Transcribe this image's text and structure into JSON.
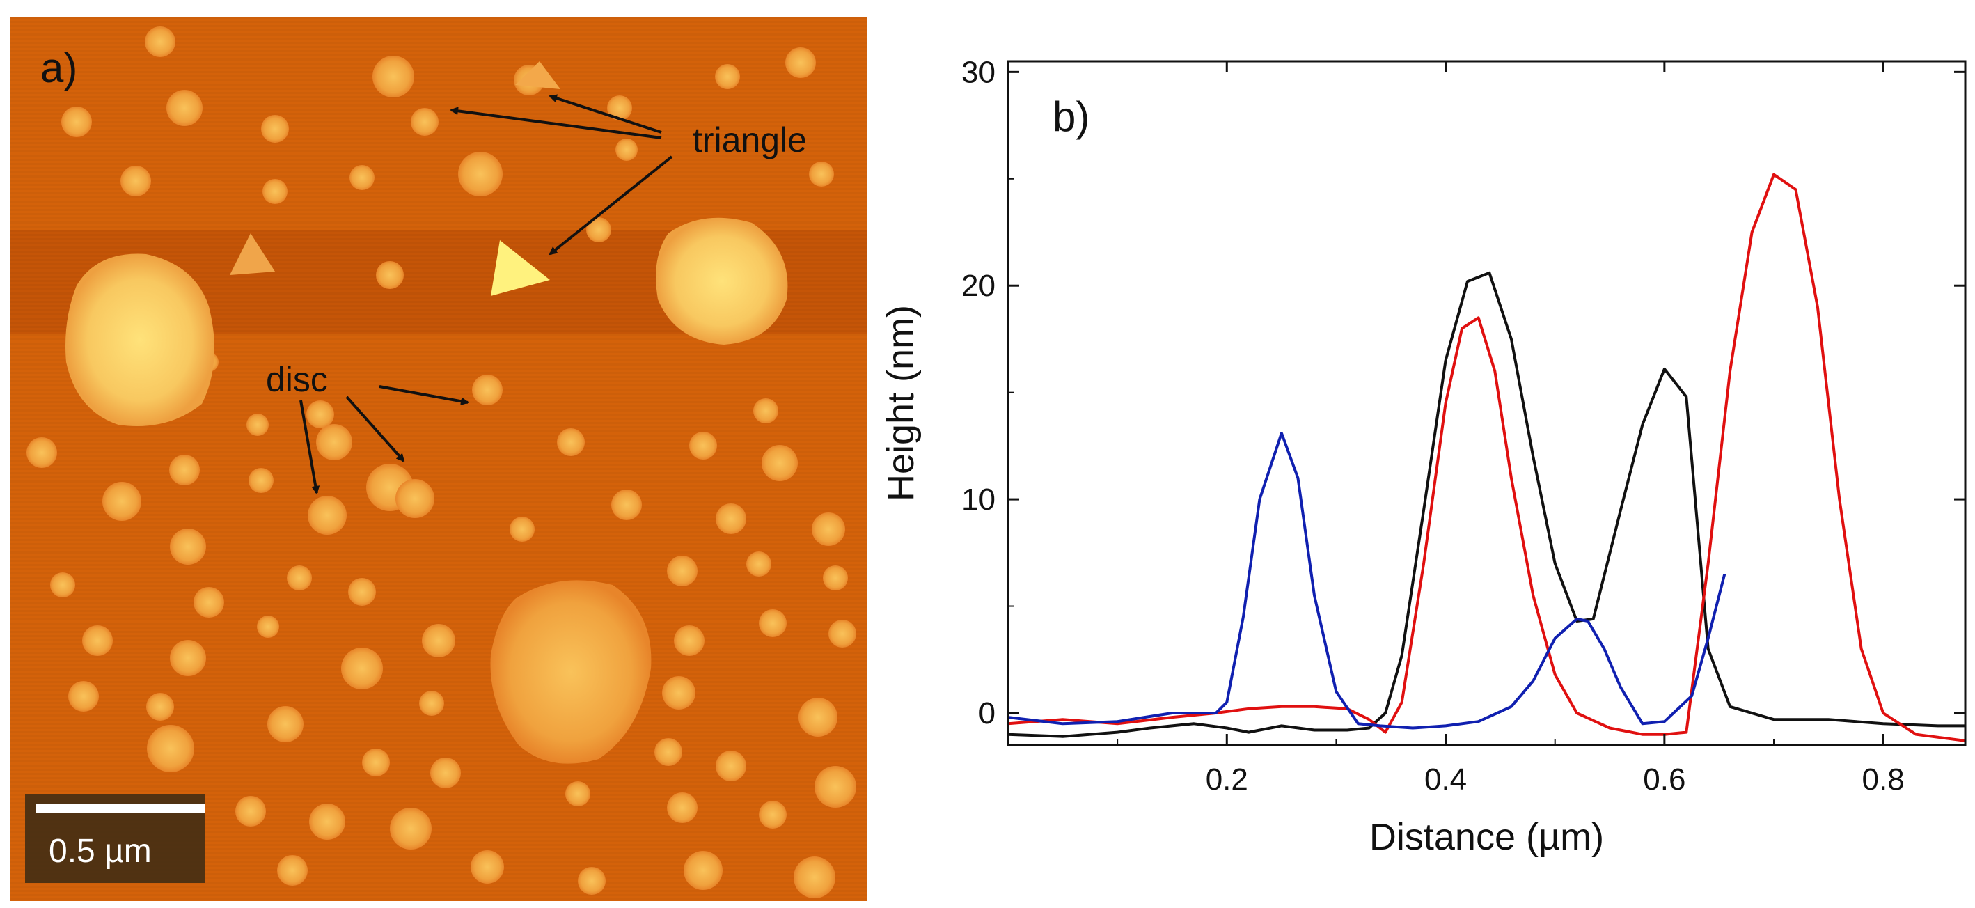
{
  "panel_a": {
    "label": "a)",
    "scale_bar_label": "0.5 µm",
    "annotations": [
      {
        "text": "triangle"
      },
      {
        "text": "disc"
      }
    ]
  },
  "panel_b": {
    "label": "b)"
  },
  "colors": {
    "afm_background": "#d4620a",
    "afm_light": "#f7b550",
    "afm_bright": "#fff07a",
    "series_black": "#111111",
    "series_red": "#e01010",
    "series_blue": "#1020b0"
  },
  "chart_data": {
    "type": "line",
    "title": "",
    "xlabel": "Distance (µm)",
    "ylabel": "Height (nm)",
    "xlim": [
      0,
      0.875
    ],
    "ylim": [
      -1.5,
      30.5
    ],
    "xticks": [
      0.2,
      0.4,
      0.6,
      0.8
    ],
    "xtick_labels": [
      "0.2",
      "0.4",
      "0.6",
      "0.8"
    ],
    "yticks": [
      0,
      10,
      20,
      30
    ],
    "ytick_labels": [
      "0",
      "10",
      "20",
      "30"
    ],
    "grid": false,
    "legend": "none",
    "series": [
      {
        "name": "black",
        "color": "#111111",
        "x": [
          0.0,
          0.05,
          0.1,
          0.13,
          0.17,
          0.2,
          0.22,
          0.25,
          0.28,
          0.31,
          0.33,
          0.345,
          0.36,
          0.38,
          0.4,
          0.42,
          0.44,
          0.46,
          0.48,
          0.5,
          0.52,
          0.535,
          0.56,
          0.58,
          0.6,
          0.62,
          0.64,
          0.66,
          0.7,
          0.75,
          0.8,
          0.85,
          0.875
        ],
        "y": [
          -1.0,
          -1.1,
          -0.9,
          -0.7,
          -0.5,
          -0.7,
          -0.9,
          -0.6,
          -0.8,
          -0.8,
          -0.7,
          0.0,
          2.7,
          9.5,
          16.5,
          20.2,
          20.6,
          17.5,
          12.0,
          7.0,
          4.3,
          4.4,
          9.5,
          13.5,
          16.1,
          14.8,
          3.0,
          0.3,
          -0.3,
          -0.3,
          -0.5,
          -0.6,
          -0.6
        ]
      },
      {
        "name": "red",
        "color": "#e01010",
        "x": [
          0.0,
          0.05,
          0.1,
          0.15,
          0.19,
          0.22,
          0.25,
          0.28,
          0.31,
          0.33,
          0.345,
          0.36,
          0.38,
          0.4,
          0.415,
          0.43,
          0.445,
          0.46,
          0.48,
          0.5,
          0.52,
          0.55,
          0.58,
          0.6,
          0.62,
          0.64,
          0.66,
          0.68,
          0.7,
          0.72,
          0.74,
          0.76,
          0.78,
          0.8,
          0.83,
          0.86,
          0.875
        ],
        "y": [
          -0.5,
          -0.3,
          -0.5,
          -0.2,
          0.0,
          0.2,
          0.3,
          0.3,
          0.2,
          -0.3,
          -0.9,
          0.5,
          7.0,
          14.5,
          18.0,
          18.5,
          16.0,
          11.0,
          5.5,
          1.8,
          0.0,
          -0.7,
          -1.0,
          -1.0,
          -0.9,
          7.0,
          16.0,
          22.5,
          25.2,
          24.5,
          19.0,
          10.0,
          3.0,
          0.0,
          -1.0,
          -1.2,
          -1.3
        ]
      },
      {
        "name": "blue",
        "color": "#1020b0",
        "x": [
          0.0,
          0.05,
          0.1,
          0.15,
          0.19,
          0.2,
          0.215,
          0.23,
          0.25,
          0.265,
          0.28,
          0.3,
          0.32,
          0.34,
          0.37,
          0.4,
          0.43,
          0.46,
          0.48,
          0.5,
          0.52,
          0.53,
          0.545,
          0.56,
          0.58,
          0.6,
          0.625,
          0.64,
          0.655
        ],
        "y": [
          -0.2,
          -0.5,
          -0.4,
          0.0,
          0.0,
          0.5,
          4.5,
          10.0,
          13.1,
          11.0,
          5.5,
          1.0,
          -0.5,
          -0.6,
          -0.7,
          -0.6,
          -0.4,
          0.3,
          1.5,
          3.5,
          4.4,
          4.3,
          3.0,
          1.2,
          -0.5,
          -0.4,
          0.8,
          3.5,
          6.5
        ]
      }
    ]
  }
}
